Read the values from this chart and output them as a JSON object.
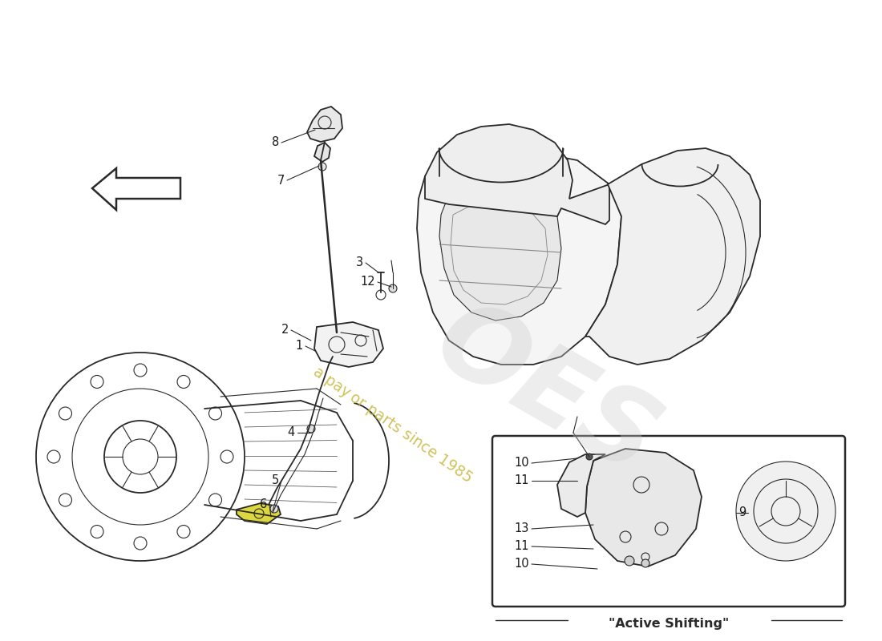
{
  "bg_color": "#ffffff",
  "line_color": "#2a2a2a",
  "label_color": "#1a1a1a",
  "watermark_color": "#c8b840",
  "active_shifting_label": "\"Active Shifting\"",
  "lw_main": 1.3,
  "lw_thin": 0.8,
  "lw_thick": 2.0
}
